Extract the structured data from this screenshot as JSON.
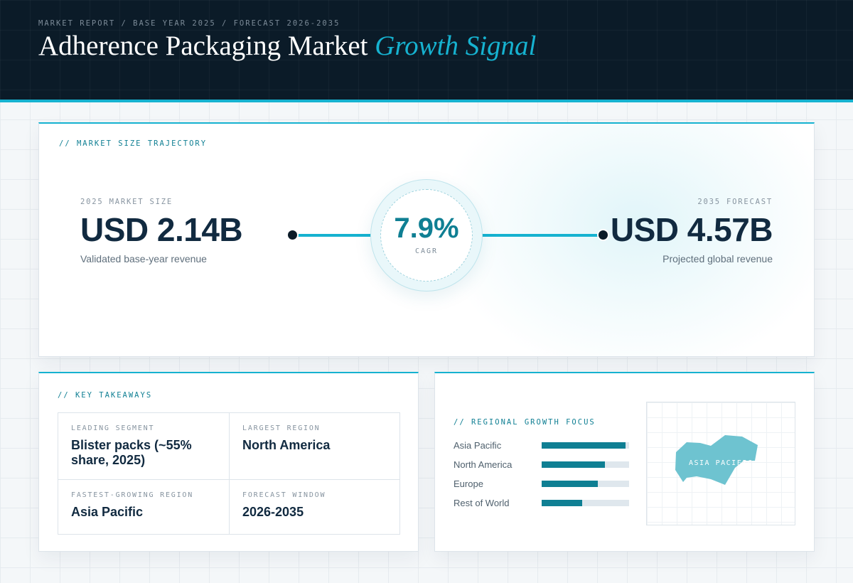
{
  "header": {
    "eyebrow": "MARKET REPORT / BASE YEAR 2025 / FORECAST 2026-2035",
    "title_main": "Adherence Packaging Market",
    "title_accent": "Growth Signal"
  },
  "trajectory": {
    "section_label": "// MARKET SIZE TRAJECTORY",
    "base": {
      "label": "2025 MARKET SIZE",
      "value": "USD 2.14B",
      "caption": "Validated base-year revenue"
    },
    "forecast": {
      "label": "2035 FORECAST",
      "value": "USD 4.57B",
      "caption": "Projected global revenue"
    },
    "cagr": {
      "value": "7.9%",
      "label": "CAGR"
    }
  },
  "takeaways": {
    "section_label": "// KEY TAKEAWAYS",
    "items": [
      {
        "label": "LEADING SEGMENT",
        "value": "Blister packs (~55% share, 2025)"
      },
      {
        "label": "LARGEST REGION",
        "value": "North America"
      },
      {
        "label": "FASTEST-GROWING REGION",
        "value": "Asia Pacific"
      },
      {
        "label": "FORECAST WINDOW",
        "value": "2026-2035"
      }
    ]
  },
  "regional": {
    "section_label": "// REGIONAL GROWTH FOCUS",
    "bars": [
      {
        "label": "Asia Pacific",
        "fraction": 0.96
      },
      {
        "label": "North America",
        "fraction": 0.72
      },
      {
        "label": "Europe",
        "fraction": 0.64
      },
      {
        "label": "Rest of World",
        "fraction": 0.46
      }
    ],
    "map_label": "ASIA PACIFIC",
    "colors": {
      "bar_fill": "#0f7f93",
      "bar_track": "#dfe7ed",
      "map_shape": "#6ec3d0"
    }
  },
  "colors": {
    "accent": "#16b2d0",
    "accent_dark": "#0f7f93",
    "header_bg": "#0b1b28",
    "text_dark": "#112a40"
  }
}
